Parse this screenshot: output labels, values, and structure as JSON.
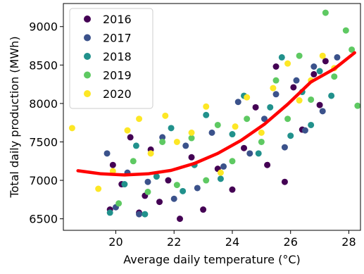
{
  "chart_data": {
    "type": "scatter",
    "xlabel": "Average daily temperature (°C)",
    "ylabel": "Total daily production (MWh)",
    "xlim": [
      18.2,
      28.4
    ],
    "ylim": [
      6350,
      9300
    ],
    "x_ticks": [
      20,
      22,
      24,
      26,
      28
    ],
    "y_ticks": [
      6500,
      7000,
      7500,
      8000,
      8500,
      9000
    ],
    "grid": false,
    "legend_position": "top-left",
    "series": [
      {
        "name": "2016",
        "color": "#440154",
        "points": [
          [
            19.8,
            6620
          ],
          [
            19.9,
            7200
          ],
          [
            20.2,
            6950
          ],
          [
            20.5,
            7560
          ],
          [
            20.8,
            6580
          ],
          [
            21.0,
            6800
          ],
          [
            21.2,
            7400
          ],
          [
            21.5,
            6720
          ],
          [
            21.8,
            7000
          ],
          [
            22.2,
            6500
          ],
          [
            22.6,
            7300
          ],
          [
            23.0,
            6620
          ],
          [
            23.5,
            7150
          ],
          [
            24.0,
            6880
          ],
          [
            24.4,
            7420
          ],
          [
            24.8,
            7950
          ],
          [
            25.2,
            7200
          ],
          [
            25.5,
            8480
          ],
          [
            25.8,
            6980
          ],
          [
            26.1,
            8210
          ],
          [
            26.4,
            7660
          ],
          [
            26.8,
            8380
          ],
          [
            27.0,
            7980
          ],
          [
            27.2,
            8550
          ]
        ]
      },
      {
        "name": "2017",
        "color": "#3b528b",
        "points": [
          [
            19.7,
            7350
          ],
          [
            20.0,
            6650
          ],
          [
            20.4,
            7100
          ],
          [
            20.8,
            6560
          ],
          [
            21.1,
            6980
          ],
          [
            21.6,
            7560
          ],
          [
            22.0,
            6760
          ],
          [
            22.4,
            7450
          ],
          [
            22.8,
            6900
          ],
          [
            23.3,
            7620
          ],
          [
            23.7,
            7180
          ],
          [
            24.2,
            8020
          ],
          [
            24.6,
            7350
          ],
          [
            25.1,
            7800
          ],
          [
            25.5,
            8120
          ],
          [
            25.8,
            7430
          ],
          [
            26.2,
            8300
          ],
          [
            26.5,
            7650
          ],
          [
            26.8,
            8480
          ],
          [
            27.1,
            7900
          ],
          [
            27.6,
            8600
          ]
        ]
      },
      {
        "name": "2018",
        "color": "#21918c",
        "points": [
          [
            19.8,
            6580
          ],
          [
            20.3,
            6950
          ],
          [
            20.7,
            7450
          ],
          [
            21.0,
            6560
          ],
          [
            21.4,
            7050
          ],
          [
            21.9,
            7680
          ],
          [
            22.3,
            6860
          ],
          [
            22.7,
            7200
          ],
          [
            23.1,
            7850
          ],
          [
            23.6,
            7020
          ],
          [
            24.0,
            7600
          ],
          [
            24.4,
            8100
          ],
          [
            24.9,
            7350
          ],
          [
            25.3,
            7950
          ],
          [
            25.7,
            8600
          ],
          [
            26.0,
            7580
          ],
          [
            26.4,
            8150
          ],
          [
            26.7,
            7720
          ],
          [
            27.0,
            8420
          ],
          [
            27.4,
            8100
          ]
        ]
      },
      {
        "name": "2019",
        "color": "#5ec962",
        "points": [
          [
            20.1,
            6700
          ],
          [
            20.6,
            7250
          ],
          [
            21.1,
            6850
          ],
          [
            21.6,
            7500
          ],
          [
            22.1,
            6940
          ],
          [
            22.6,
            7550
          ],
          [
            23.1,
            7000
          ],
          [
            23.5,
            7720
          ],
          [
            24.0,
            7250
          ],
          [
            24.5,
            7800
          ],
          [
            25.0,
            7500
          ],
          [
            25.5,
            8300
          ],
          [
            25.9,
            7800
          ],
          [
            26.3,
            8620
          ],
          [
            26.7,
            8050
          ],
          [
            27.2,
            9180
          ],
          [
            27.5,
            8350
          ],
          [
            27.9,
            8950
          ],
          [
            28.1,
            8700
          ],
          [
            28.3,
            7970
          ]
        ]
      },
      {
        "name": "2020",
        "color": "#fde725",
        "points": [
          [
            18.5,
            7680
          ],
          [
            19.4,
            6890
          ],
          [
            19.9,
            7120
          ],
          [
            20.4,
            7650
          ],
          [
            20.8,
            7800
          ],
          [
            21.2,
            7350
          ],
          [
            21.7,
            7840
          ],
          [
            22.1,
            7500
          ],
          [
            22.6,
            7620
          ],
          [
            23.1,
            7960
          ],
          [
            23.6,
            7100
          ],
          [
            24.1,
            7700
          ],
          [
            24.5,
            8080
          ],
          [
            25.0,
            7620
          ],
          [
            25.4,
            8200
          ],
          [
            25.9,
            8520
          ],
          [
            26.3,
            8040
          ],
          [
            26.7,
            8300
          ],
          [
            27.1,
            8620
          ],
          [
            27.5,
            8460
          ]
        ]
      }
    ],
    "fit_curve": {
      "color": "#ff0000",
      "points": [
        [
          18.7,
          7125
        ],
        [
          19.5,
          7085
        ],
        [
          20.3,
          7070
        ],
        [
          21.1,
          7085
        ],
        [
          21.9,
          7130
        ],
        [
          22.7,
          7220
        ],
        [
          23.5,
          7350
        ],
        [
          24.3,
          7520
        ],
        [
          25.1,
          7730
        ],
        [
          25.9,
          7990
        ],
        [
          26.7,
          8280
        ],
        [
          27.5,
          8450
        ],
        [
          28.2,
          8660
        ]
      ]
    }
  }
}
